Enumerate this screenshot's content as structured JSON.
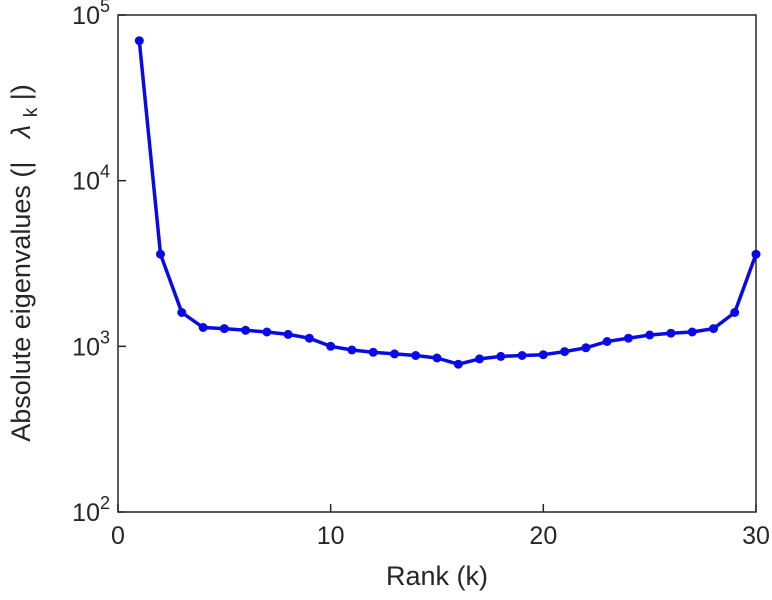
{
  "chart_data": {
    "type": "line",
    "title": "",
    "xlabel": "Rank (k)",
    "ylabel": "Absolute eigenvalues (| λ_k |)",
    "ylabel_parts": {
      "prefix": "Absolute eigenvalues (|",
      "symbol": "λ",
      "subscript": "k",
      "suffix": "|)"
    },
    "x": [
      1,
      2,
      3,
      4,
      5,
      6,
      7,
      8,
      9,
      10,
      11,
      12,
      13,
      14,
      15,
      16,
      17,
      18,
      19,
      20,
      21,
      22,
      23,
      24,
      25,
      26,
      27,
      28,
      29,
      30
    ],
    "y": [
      70000,
      3600,
      1600,
      1300,
      1280,
      1250,
      1220,
      1180,
      1120,
      1000,
      950,
      920,
      900,
      880,
      850,
      780,
      840,
      870,
      880,
      890,
      930,
      980,
      1070,
      1120,
      1170,
      1200,
      1220,
      1280,
      1600,
      3600
    ],
    "xlim": [
      0,
      30
    ],
    "ylim_log10": [
      2,
      5
    ],
    "x_ticks": [
      0,
      10,
      20,
      30
    ],
    "y_tick_base": "10",
    "y_tick_exponents": [
      2,
      3,
      4,
      5
    ],
    "grid": "off",
    "legend": "none",
    "line_color": "#0a0ae6",
    "marker": "circle",
    "axis_color": "#262626"
  }
}
